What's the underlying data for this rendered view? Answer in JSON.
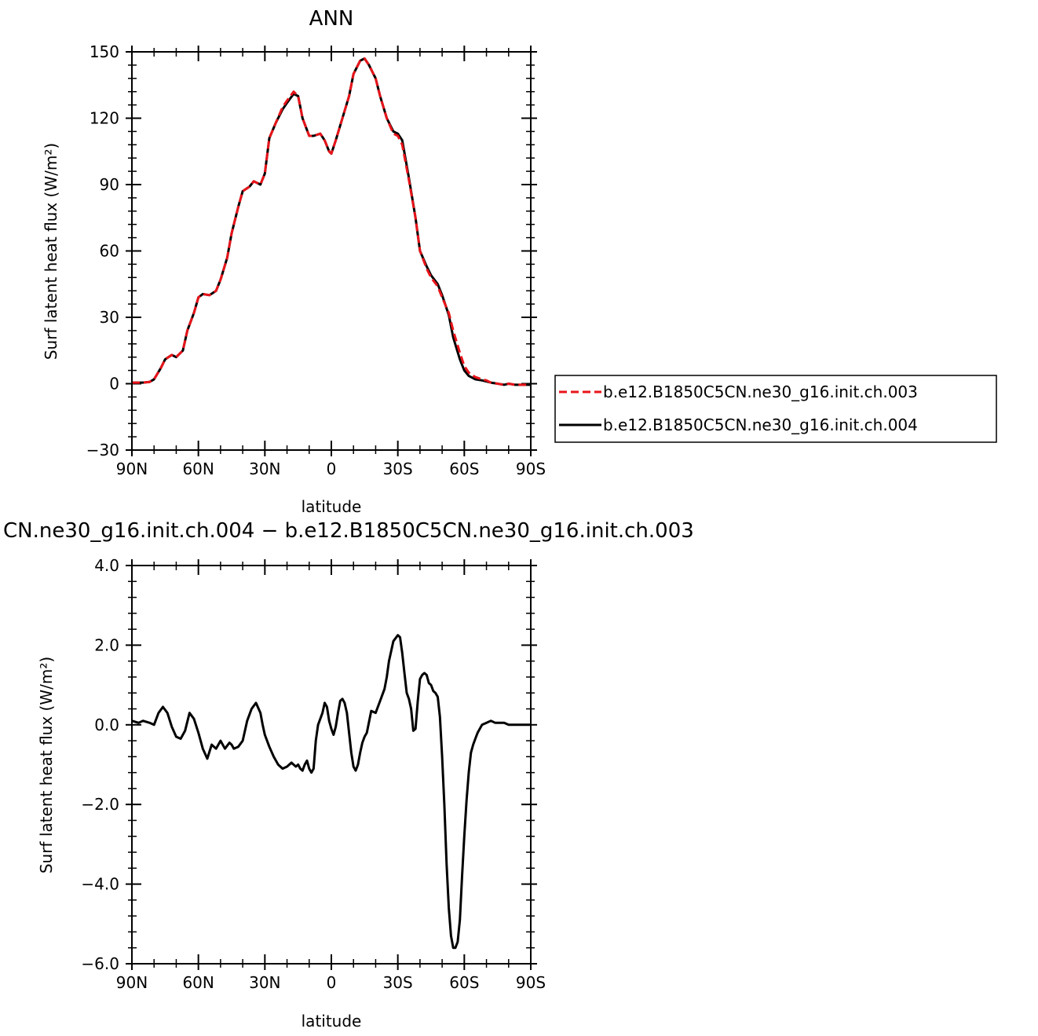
{
  "chart_data": [
    {
      "type": "line",
      "title": "ANN",
      "xlabel": "latitude",
      "ylabel": "Surf latent heat flux (W/m²)",
      "xlim": [
        90,
        -90
      ],
      "ylim": [
        -30,
        150
      ],
      "x_ticks": [
        90,
        60,
        30,
        0,
        -30,
        -60,
        -90
      ],
      "x_tick_labels": [
        "90N",
        "60N",
        "30N",
        "0",
        "30S",
        "60S",
        "90S"
      ],
      "y_ticks": [
        -30,
        0,
        30,
        60,
        90,
        120,
        150
      ],
      "y_tick_labels": [
        "−30",
        "0",
        "30",
        "60",
        "90",
        "120",
        "150"
      ],
      "grid": false,
      "legend_position": "right-outside",
      "series": [
        {
          "name": "b.e12.B1850C5CN.ne30_g16.init.ch.003",
          "color": "#e8141a",
          "dash": "dashed",
          "x": [
            90,
            85,
            82,
            80,
            77,
            75,
            72,
            70,
            67,
            65,
            62,
            60,
            58,
            55,
            52,
            50,
            47,
            45,
            42,
            40,
            37,
            35,
            32,
            30,
            28,
            25,
            22,
            20,
            17,
            15,
            13,
            10,
            8,
            5,
            3,
            1,
            0,
            -2,
            -5,
            -8,
            -10,
            -13,
            -15,
            -17,
            -20,
            -22,
            -25,
            -28,
            -30,
            -32,
            -35,
            -38,
            -40,
            -43,
            -45,
            -48,
            -50,
            -53,
            -55,
            -58,
            -60,
            -62,
            -65,
            -68,
            -70,
            -72,
            -75,
            -78,
            -80,
            -83,
            -86,
            -90
          ],
          "y": [
            0.5,
            0.5,
            0.8,
            2,
            7,
            11,
            13,
            12,
            15,
            24,
            32,
            39,
            40.5,
            40,
            42,
            47,
            57,
            68,
            80,
            87,
            89,
            91.5,
            90,
            95,
            111,
            118,
            125,
            128,
            132,
            130,
            120,
            112,
            112,
            113,
            110,
            105,
            104,
            110,
            120,
            130,
            140,
            146,
            147,
            144,
            138,
            130,
            120,
            113,
            112,
            108,
            92,
            75,
            60,
            52,
            48,
            44,
            39,
            32,
            24,
            14,
            8,
            5,
            3,
            2,
            1.5,
            0.5,
            0,
            -0.5,
            0,
            -0.5,
            -0.5,
            -0.5
          ]
        },
        {
          "name": "b.e12.B1850C5CN.ne30_g16.init.ch.004",
          "color": "#000000",
          "dash": "solid",
          "x": [
            90,
            85,
            82,
            80,
            77,
            75,
            72,
            70,
            67,
            65,
            62,
            60,
            58,
            55,
            52,
            50,
            47,
            45,
            42,
            40,
            37,
            35,
            32,
            30,
            28,
            25,
            22,
            20,
            17,
            15,
            13,
            10,
            8,
            5,
            3,
            1,
            0,
            -2,
            -5,
            -8,
            -10,
            -13,
            -15,
            -17,
            -20,
            -22,
            -25,
            -28,
            -30,
            -32,
            -35,
            -38,
            -40,
            -43,
            -45,
            -48,
            -50,
            -53,
            -55,
            -58,
            -60,
            -62,
            -65,
            -68,
            -70,
            -72,
            -75,
            -78,
            -80,
            -83,
            -86,
            -90
          ],
          "y": [
            0.5,
            0.5,
            0.8,
            2,
            7,
            11,
            13,
            12,
            15,
            24,
            32,
            39,
            40.5,
            40,
            42,
            47,
            57,
            68,
            80,
            87,
            89,
            91.5,
            90,
            95,
            111,
            118,
            124,
            127,
            131,
            130,
            120,
            112,
            112,
            113,
            110,
            105,
            104,
            110,
            120,
            130,
            140,
            146,
            147,
            144,
            138,
            130,
            120,
            114,
            113,
            110,
            93,
            75,
            60,
            53,
            49,
            45,
            40,
            31,
            21,
            11,
            6,
            3.5,
            2,
            1.5,
            1,
            0.5,
            0,
            -0.5,
            0,
            -0.5,
            -0.5,
            -0.5
          ]
        }
      ]
    },
    {
      "type": "line",
      "title": "CN.ne30_g16.init.ch.004 − b.e12.B1850C5CN.ne30_g16.init.ch.003",
      "xlabel": "latitude",
      "ylabel": "Surf latent heat flux (W/m²)",
      "xlim": [
        90,
        -90
      ],
      "ylim": [
        -6,
        4
      ],
      "x_ticks": [
        90,
        60,
        30,
        0,
        -30,
        -60,
        -90
      ],
      "x_tick_labels": [
        "90N",
        "60N",
        "30N",
        "0",
        "30S",
        "60S",
        "90S"
      ],
      "y_ticks": [
        -6,
        -4,
        -2,
        0,
        2,
        4
      ],
      "y_tick_labels": [
        "−6.0",
        "−4.0",
        "−2.0",
        "0.0",
        "2.0",
        "4.0"
      ],
      "grid": false,
      "series": [
        {
          "color": "#000000",
          "dash": "solid",
          "x": [
            90,
            87,
            85,
            82,
            80,
            78,
            76,
            74,
            72,
            70,
            68,
            66,
            64,
            62,
            60,
            58,
            56,
            54,
            52,
            50,
            48,
            46,
            45,
            44,
            42,
            40,
            38,
            36,
            34,
            32,
            31,
            30,
            28,
            26,
            24,
            22,
            20,
            18,
            17,
            16,
            15,
            14,
            13,
            12,
            11,
            10,
            9,
            8,
            7,
            6,
            4,
            3,
            2,
            1,
            0,
            -1,
            -2,
            -3,
            -4,
            -5,
            -6,
            -7,
            -8,
            -9,
            -10,
            -11,
            -12,
            -13,
            -14,
            -15,
            -16,
            -18,
            -20,
            -22,
            -24,
            -25,
            -26,
            -28,
            -30,
            -31,
            -32,
            -33,
            -34,
            -35,
            -36,
            -37,
            -38,
            -39,
            -40,
            -41,
            -42,
            -43,
            -44,
            -45,
            -46,
            -47,
            -48,
            -49,
            -50,
            -51,
            -52,
            -53,
            -54,
            -55,
            -56,
            -57,
            -58,
            -59,
            -60,
            -61,
            -62,
            -63,
            -64,
            -65,
            -66,
            -68,
            -70,
            -72,
            -74,
            -76,
            -78,
            -80,
            -85,
            -90
          ],
          "y": [
            0.1,
            0.05,
            0.1,
            0.05,
            0,
            0.3,
            0.45,
            0.3,
            -0.05,
            -0.3,
            -0.35,
            -0.15,
            0.3,
            0.15,
            -0.2,
            -0.6,
            -0.85,
            -0.5,
            -0.6,
            -0.4,
            -0.6,
            -0.45,
            -0.5,
            -0.6,
            -0.55,
            -0.4,
            0.1,
            0.4,
            0.55,
            0.3,
            0.0,
            -0.25,
            -0.55,
            -0.8,
            -1.0,
            -1.1,
            -1.05,
            -0.95,
            -1.0,
            -1.05,
            -1.0,
            -1.1,
            -1.15,
            -1.0,
            -0.9,
            -1.1,
            -1.2,
            -1.1,
            -0.4,
            0.0,
            0.3,
            0.55,
            0.45,
            0.1,
            -0.1,
            -0.25,
            -0.05,
            0.3,
            0.6,
            0.65,
            0.55,
            0.3,
            -0.2,
            -0.7,
            -1.05,
            -1.15,
            -1.0,
            -0.7,
            -0.45,
            -0.3,
            -0.2,
            0.35,
            0.3,
            0.6,
            0.9,
            1.2,
            1.6,
            2.1,
            2.25,
            2.2,
            1.8,
            1.3,
            0.8,
            0.65,
            0.4,
            -0.15,
            -0.1,
            0.6,
            1.15,
            1.25,
            1.3,
            1.25,
            1.05,
            1.0,
            0.85,
            0.8,
            0.7,
            0.2,
            -0.8,
            -2.0,
            -3.5,
            -4.6,
            -5.3,
            -5.6,
            -5.6,
            -5.45,
            -4.9,
            -3.8,
            -2.8,
            -1.9,
            -1.2,
            -0.7,
            -0.5,
            -0.35,
            -0.2,
            0.0,
            0.05,
            0.1,
            0.05,
            0.05,
            0.05,
            0.0,
            0.0,
            0.0
          ]
        }
      ]
    }
  ]
}
